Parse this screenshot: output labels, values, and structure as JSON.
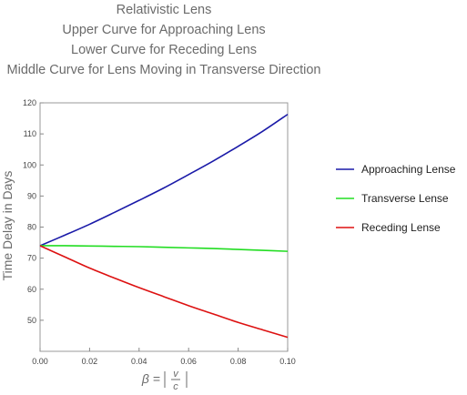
{
  "chart_data": {
    "type": "line",
    "title_lines": [
      "Relativistic Lens",
      "Upper Curve for Approaching Lens",
      "Lower Curve for Receding Lens",
      "Middle Curve for Lens Moving in Transverse Direction"
    ],
    "ylabel": "Time Delay in Days",
    "xlabel_prefix": "β =",
    "xlabel_num": "v",
    "xlabel_den": "c",
    "xlim": [
      0,
      0.1
    ],
    "ylim": [
      40,
      120
    ],
    "xticks": [
      0.0,
      0.02,
      0.04,
      0.06,
      0.08,
      0.1
    ],
    "xtick_labels": [
      "0.00",
      "0.02",
      "0.04",
      "0.06",
      "0.08",
      "0.10"
    ],
    "yticks": [
      50,
      60,
      70,
      80,
      90,
      100,
      110,
      120
    ],
    "ytick_labels": [
      "50",
      "60",
      "70",
      "80",
      "90",
      "100",
      "110",
      "120"
    ],
    "grid": true,
    "legend_position": "right",
    "x": [
      0.0,
      0.01,
      0.02,
      0.03,
      0.04,
      0.05,
      0.06,
      0.07,
      0.08,
      0.09,
      0.1
    ],
    "series": [
      {
        "name": "Approaching Lense",
        "color": "#1a1aa8",
        "values": [
          74.0,
          77.4,
          80.9,
          84.7,
          88.6,
          92.6,
          96.9,
          101.3,
          106.0,
          110.9,
          116.3
        ]
      },
      {
        "name": "Transverse Lense",
        "color": "#22dd22",
        "values": [
          74.0,
          74.0,
          73.9,
          73.8,
          73.7,
          73.5,
          73.3,
          73.1,
          72.8,
          72.5,
          72.2
        ]
      },
      {
        "name": "Receding Lense",
        "color": "#dd1111",
        "values": [
          74.0,
          70.4,
          66.8,
          63.6,
          60.5,
          57.6,
          54.7,
          52.0,
          49.3,
          46.9,
          44.5
        ]
      }
    ]
  }
}
